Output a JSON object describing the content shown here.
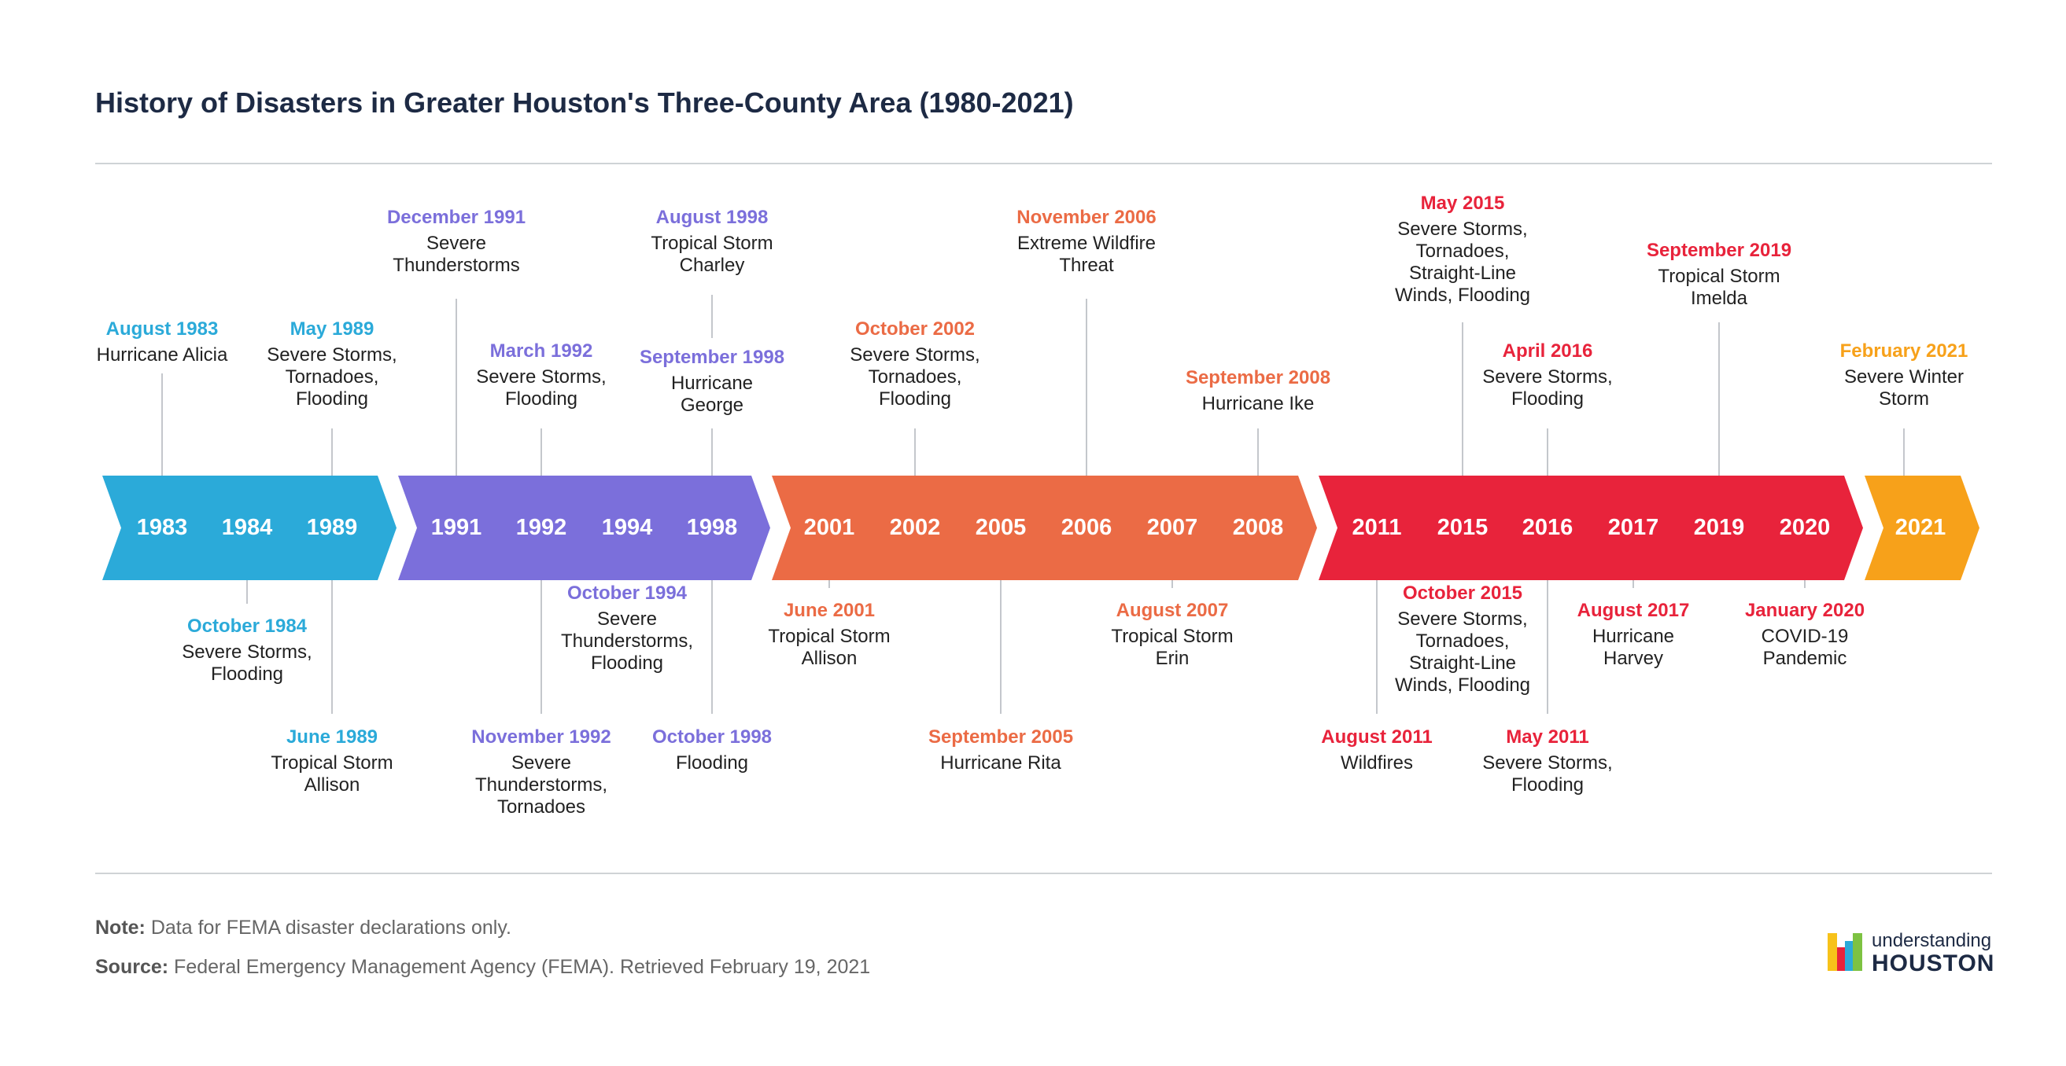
{
  "title": "History of Disasters in Greater Houston's Three-County Area (1980-2021)",
  "colors": {
    "cyan": "#2BAAD9",
    "purple": "#7B6FDB",
    "orange": "#EB6B45",
    "red": "#E8233B",
    "amber": "#F7A11A"
  },
  "segments": [
    {
      "color": "#2BAAD9",
      "years": [
        "1983",
        "1984",
        "1989"
      ]
    },
    {
      "color": "#7B6FDB",
      "years": [
        "1991",
        "1992",
        "1994",
        "1998"
      ]
    },
    {
      "color": "#EB6B45",
      "years": [
        "2001",
        "2002",
        "2005",
        "2006",
        "2007",
        "2008"
      ]
    },
    {
      "color": "#E8233B",
      "years": [
        "2011",
        "2015",
        "2016",
        "2017",
        "2019",
        "2020"
      ]
    },
    {
      "color": "#F7A11A",
      "years": [
        "2021"
      ]
    }
  ],
  "events": [
    {
      "date": "August 1983",
      "label": "Hurricane Alicia",
      "color": "#2BAAD9"
    },
    {
      "date": "October 1984",
      "label": "Severe Storms, Flooding",
      "color": "#2BAAD9"
    },
    {
      "date": "May 1989",
      "label": "Severe Storms, Tornadoes, Flooding",
      "color": "#2BAAD9"
    },
    {
      "date": "June 1989",
      "label": "Tropical Storm Allison",
      "color": "#2BAAD9"
    },
    {
      "date": "December 1991",
      "label": "Severe Thunderstorms",
      "color": "#7B6FDB"
    },
    {
      "date": "March 1992",
      "label": "Severe Storms, Flooding",
      "color": "#7B6FDB"
    },
    {
      "date": "November 1992",
      "label": "Severe Thunderstorms, Tornadoes",
      "color": "#7B6FDB"
    },
    {
      "date": "October 1994",
      "label": "Severe Thunderstorms, Flooding",
      "color": "#7B6FDB"
    },
    {
      "date": "August 1998",
      "label": "Tropical Storm Charley",
      "color": "#7B6FDB"
    },
    {
      "date": "September 1998",
      "label": "Hurricane George",
      "color": "#7B6FDB"
    },
    {
      "date": "October 1998",
      "label": "Flooding",
      "color": "#7B6FDB"
    },
    {
      "date": "June 2001",
      "label": "Tropical Storm Allison",
      "color": "#EB6B45"
    },
    {
      "date": "October 2002",
      "label": "Severe Storms, Tornadoes, Flooding",
      "color": "#EB6B45"
    },
    {
      "date": "September 2005",
      "label": "Hurricane Rita",
      "color": "#EB6B45"
    },
    {
      "date": "November 2006",
      "label": "Extreme Wildfire Threat",
      "color": "#EB6B45"
    },
    {
      "date": "August 2007",
      "label": "Tropical Storm Erin",
      "color": "#EB6B45"
    },
    {
      "date": "September 2008",
      "label": "Hurricane Ike",
      "color": "#EB6B45"
    },
    {
      "date": "August 2011",
      "label": "Wildfires",
      "color": "#E8233B"
    },
    {
      "date": "May 2015",
      "label": "Severe Storms, Tornadoes, Straight-Line Winds, Flooding",
      "color": "#E8233B"
    },
    {
      "date": "October 2015",
      "label": "Severe Storms, Tornadoes, Straight-Line Winds, Flooding",
      "color": "#E8233B"
    },
    {
      "date": "April 2016",
      "label": "Severe Storms, Flooding",
      "color": "#E8233B"
    },
    {
      "date": "May 2011",
      "label": "Severe Storms, Flooding",
      "color": "#E8233B"
    },
    {
      "date": "August 2017",
      "label": "Hurricane Harvey",
      "color": "#E8233B"
    },
    {
      "date": "September 2019",
      "label": "Tropical Storm Imelda",
      "color": "#E8233B"
    },
    {
      "date": "January 2020",
      "label": "COVID-19 Pandemic",
      "color": "#E8233B"
    },
    {
      "date": "February 2021",
      "label": "Severe Winter Storm",
      "color": "#F7A11A"
    }
  ],
  "note": {
    "label": "Note:",
    "text": "Data for FEMA disaster declarations only."
  },
  "source": {
    "label": "Source:",
    "text": "Federal Emergency Management Agency (FEMA). Retrieved February 19, 2021"
  },
  "logo": {
    "line1": "understanding",
    "line2": "HOUSTON"
  }
}
